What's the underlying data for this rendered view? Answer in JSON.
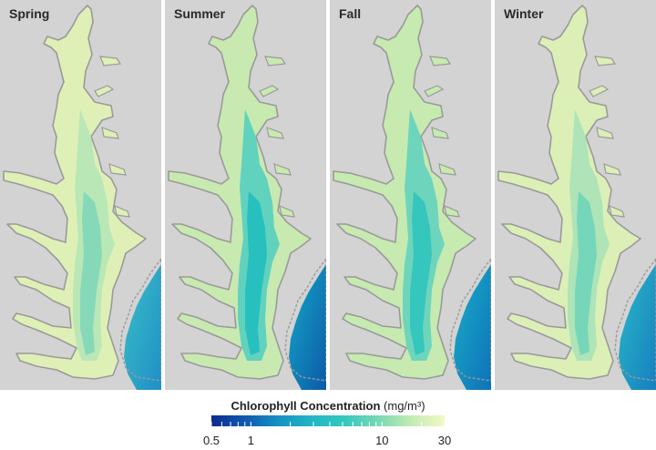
{
  "panels": [
    {
      "label": "Spring",
      "bay_fill": "#dff0b6",
      "bay_core": "#b6e5b6",
      "bay_deep": "#7dd6b8",
      "ocean_shallow": "#3bbfc4",
      "ocean_deep": "#1f8fc8"
    },
    {
      "label": "Summer",
      "bay_fill": "#c8eab0",
      "bay_core": "#55cfc0",
      "bay_deep": "#1fbdbf",
      "ocean_shallow": "#17a9c8",
      "ocean_deep": "#0b5aa8"
    },
    {
      "label": "Fall",
      "bay_fill": "#c6eab0",
      "bay_core": "#64d3bf",
      "bay_deep": "#2bc3be",
      "ocean_shallow": "#1aaec7",
      "ocean_deep": "#0e72b9"
    },
    {
      "label": "Winter",
      "bay_fill": "#dcefb6",
      "bay_core": "#a8e2b7",
      "bay_deep": "#6cd3ba",
      "ocean_shallow": "#2cb9c6",
      "ocean_deep": "#167fc0"
    }
  ],
  "legend": {
    "title": "Chlorophyll Concentration",
    "units": "(mg/m³)",
    "colors": [
      "#0b2a8f",
      "#1059b0",
      "#1690c4",
      "#22b6c6",
      "#34c8bf",
      "#78d8b4",
      "#c2ebb4",
      "#f4f9c6"
    ],
    "scale": "log",
    "range": [
      0.5,
      30
    ],
    "tick_values": [
      0.5,
      0.6,
      0.7,
      0.8,
      0.9,
      1,
      2,
      3,
      4,
      5,
      6,
      7,
      8,
      9,
      10,
      20,
      30
    ],
    "tick_labels": [
      {
        "value": 0.5,
        "text": "0.5"
      },
      {
        "value": 1,
        "text": "1"
      },
      {
        "value": 10,
        "text": "10"
      },
      {
        "value": 30,
        "text": "30"
      }
    ]
  },
  "colors": {
    "land": "#d3d3d3",
    "coast": "#9a9a9a"
  }
}
